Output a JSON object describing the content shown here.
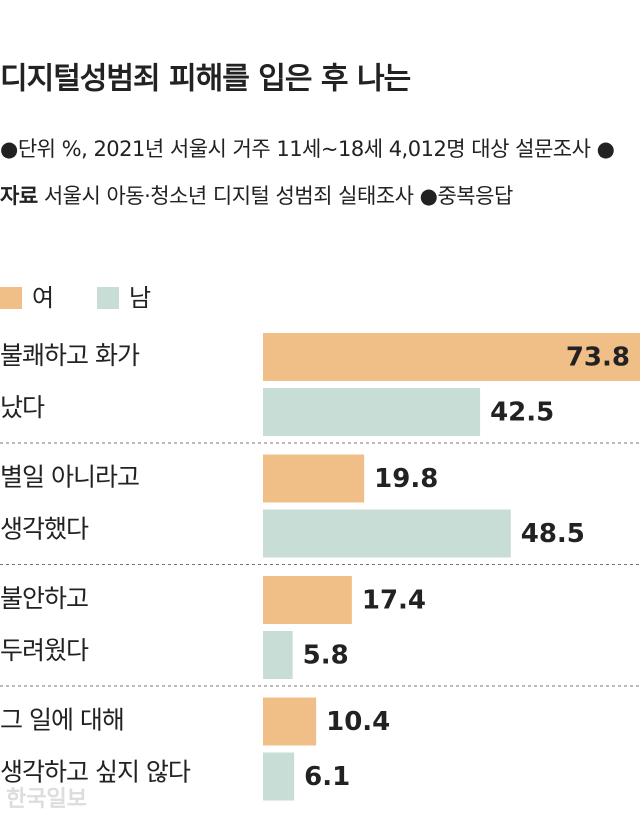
{
  "chart_data": {
    "type": "bar",
    "orientation": "horizontal",
    "title": "디지털성범죄 피해를 입은 후 나는",
    "notes": [
      {
        "text": "단위  %, 2021년 서울시 거주 11세~18세 4,012명 대상 설문조사"
      },
      {
        "label": "자료",
        "text": "서울시 아동·청소년 디지털 성범죄 실태조사"
      },
      {
        "text": "중복응답"
      }
    ],
    "categories": [
      "불쾌하고 화가\n났다",
      "별일 아니라고\n생각했다",
      "불안하고\n두려웠다",
      "그 일에 대해\n생각하고 싶지 않다"
    ],
    "series": [
      {
        "name": "여",
        "color": "#f0bf88",
        "values": [
          73.8,
          19.8,
          17.4,
          10.4
        ]
      },
      {
        "name": "남",
        "color": "#c7ddd5",
        "values": [
          42.5,
          48.5,
          5.8,
          6.1
        ]
      }
    ],
    "watermark": "한국일보"
  }
}
